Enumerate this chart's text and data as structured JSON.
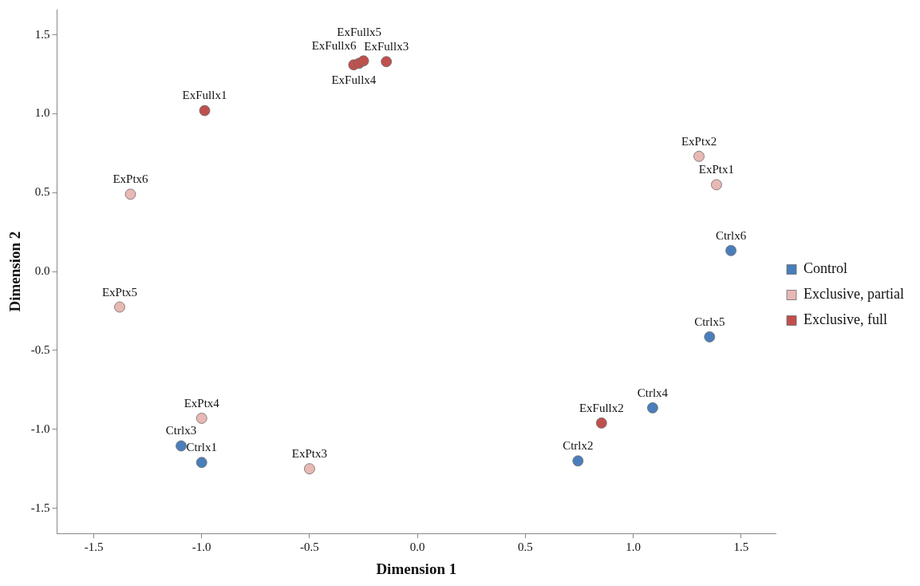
{
  "chart_data": {
    "type": "scatter",
    "xlabel": "Dimension 1",
    "ylabel": "Dimension 2",
    "xlim": [
      -1.67,
      1.66
    ],
    "ylim": [
      -1.66,
      1.66
    ],
    "xticks": [
      -1.5,
      {
        "value": -1,
        "label": "-1.0"
      },
      -0.5,
      {
        "value": 0,
        "label": "0.0"
      },
      0.5,
      {
        "value": 1,
        "label": "1.0"
      },
      1.5
    ],
    "yticks": [
      -1.5,
      {
        "value": -1,
        "label": "-1.0"
      },
      -0.5,
      {
        "value": 0,
        "label": "0.0"
      },
      0.5,
      {
        "value": 1,
        "label": "1.0"
      },
      1.5
    ],
    "grid": false,
    "legend": "right",
    "marker": "circle",
    "series": [
      {
        "name": "Control",
        "color": "#4a7ebb",
        "x": [
          -1.0,
          0.744,
          -1.095,
          1.09,
          1.354,
          1.453
        ],
        "values": [
          -1.21,
          -1.2,
          -1.105,
          -0.864,
          -0.414,
          0.133
        ]
      },
      {
        "name": "Exclusive, partial",
        "color": "#e8b8b4",
        "x": [
          1.386,
          1.305,
          -0.5,
          -1.0,
          -1.38,
          -1.33
        ],
        "values": [
          0.55,
          0.73,
          -1.25,
          -0.93,
          -0.225,
          0.49
        ]
      },
      {
        "name": "Exclusive, full",
        "color": "#c0504d",
        "x": [
          -0.986,
          0.853,
          -0.144,
          -0.295,
          -0.27,
          -0.25
        ],
        "values": [
          1.02,
          -0.96,
          1.33,
          1.31,
          1.32,
          1.335
        ]
      }
    ],
    "annotations": [
      {
        "text": "Ctrlx1",
        "x": -1.0,
        "y": -1.21
      },
      {
        "text": "Ctrlx2",
        "x": 0.744,
        "y": -1.2
      },
      {
        "text": "Ctrlx3",
        "x": -1.095,
        "y": -1.105
      },
      {
        "text": "Ctrlx4",
        "x": 1.09,
        "y": -0.864
      },
      {
        "text": "Ctrlx5",
        "x": 1.354,
        "y": -0.414
      },
      {
        "text": "Ctrlx6",
        "x": 1.453,
        "y": 0.133
      },
      {
        "text": "ExPtx1",
        "x": 1.386,
        "y": 0.55
      },
      {
        "text": "ExPtx2",
        "x": 1.305,
        "y": 0.73
      },
      {
        "text": "ExPtx3",
        "x": -0.5,
        "y": -1.25
      },
      {
        "text": "ExPtx4",
        "x": -1.0,
        "y": -0.93
      },
      {
        "text": "ExPtx5",
        "x": -1.38,
        "y": -0.225
      },
      {
        "text": "ExPtx6",
        "x": -1.33,
        "y": 0.49
      },
      {
        "text": "ExFullx1",
        "x": -0.986,
        "y": 1.02
      },
      {
        "text": "ExFullx2",
        "x": 0.853,
        "y": -0.96
      },
      {
        "text": "ExFullx3",
        "x": -0.144,
        "y": 1.33
      },
      {
        "text": "ExFullx4",
        "x": -0.295,
        "y": 1.31
      },
      {
        "text": "ExFullx5",
        "x": -0.27,
        "y": 1.32
      },
      {
        "text": "ExFullx6",
        "x": -0.25,
        "y": 1.335
      }
    ]
  }
}
